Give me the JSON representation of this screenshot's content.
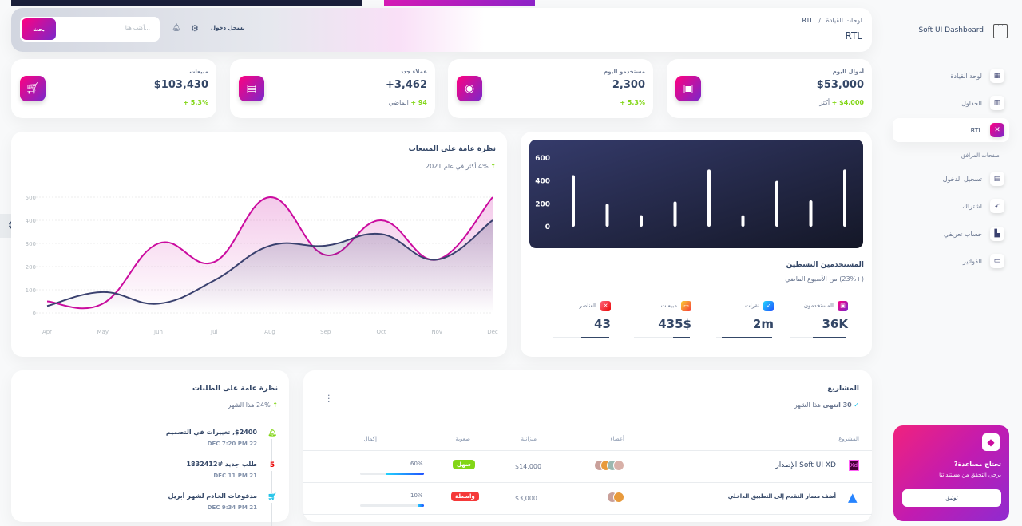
{
  "brand": {
    "name": "Soft UI Dashboard"
  },
  "navbar": {
    "breadcrumb_root": "لوحات القيادة",
    "breadcrumb_sep": "/",
    "breadcrumb_current": "RTL",
    "page_title": "RTL",
    "search_placeholder": "أكتب هنا...",
    "search_button": "بحث",
    "signin": "يسجل دخول"
  },
  "sidebar": {
    "items": [
      {
        "label": "لوحة القيادة",
        "icon": "shop-icon"
      },
      {
        "label": "الجداول",
        "icon": "office-icon"
      },
      {
        "label": "RTL",
        "icon": "tools-icon",
        "active": true
      }
    ],
    "section": "صفحات المرافق",
    "account_items": [
      {
        "label": "تسجيل الدخول",
        "icon": "document-icon"
      },
      {
        "label": "اشتراك",
        "icon": "rocket-icon"
      },
      {
        "label": "حساب تعريفي",
        "icon": "user-icon"
      },
      {
        "label": "الفواتير",
        "icon": "credit-card-icon"
      }
    ],
    "help": {
      "title": "تحتاج مساعدة?",
      "subtitle": "يرجى التحقق من مستنداتنا",
      "button": "توثيق"
    }
  },
  "stats": [
    {
      "title": "أموال اليوم",
      "value": "$53,000",
      "change": "+ $4,000",
      "suffix": "أكثر",
      "icon": "money-icon"
    },
    {
      "title": "مستخدمو اليوم",
      "value": "2,300",
      "change": "+ 5,3%",
      "suffix": "",
      "icon": "globe-icon"
    },
    {
      "title": "عملاء جدد",
      "value": "+3,462",
      "change": "+ 94",
      "suffix": "الماضي",
      "icon": "document-icon"
    },
    {
      "title": "مبيعات",
      "value": "$103,430",
      "change": "+ 5.3%",
      "suffix": "",
      "icon": "cart-icon"
    }
  ],
  "active_users": {
    "title": "المستخدمين النشطين",
    "subtitle": "(+23%) من الأسبوع الماضي",
    "metrics": [
      {
        "label": "المستخدمون",
        "value": "36K",
        "progress": 60,
        "color": "#cb0c9f"
      },
      {
        "label": "نقرات",
        "value": "2m",
        "progress": 90,
        "color": "#17c1e8"
      },
      {
        "label": "مبيعات",
        "value": "435$",
        "progress": 30,
        "color": "#f53939"
      },
      {
        "label": "العناصر",
        "value": "43",
        "progress": 50,
        "color": "#ea0606"
      }
    ]
  },
  "sales_overview": {
    "title": "نظرة عامة على المبيعات",
    "subtitle": "4% أكثر في عام 2021"
  },
  "chart_data": [
    {
      "type": "bar",
      "y_ticks": [
        "600",
        "400",
        "200",
        "0"
      ],
      "ylim": [
        0,
        600
      ],
      "values": [
        450,
        200,
        100,
        220,
        500,
        100,
        400,
        230,
        500
      ],
      "grid": false,
      "color": "#ffffff"
    },
    {
      "type": "area",
      "categories": [
        "Apr",
        "May",
        "Jun",
        "Jul",
        "Aug",
        "Sep",
        "Oct",
        "Nov",
        "Dec"
      ],
      "y_ticks": [
        "500",
        "400",
        "300",
        "200",
        "100",
        "0"
      ],
      "ylim": [
        0,
        500
      ],
      "grid": true,
      "series": [
        {
          "values": [
            50,
            40,
            300,
            220,
            500,
            250,
            400,
            230,
            500
          ],
          "color": "#cb0c9f"
        },
        {
          "values": [
            30,
            90,
            40,
            140,
            290,
            290,
            340,
            230,
            400
          ],
          "color": "#3a416f"
        }
      ]
    }
  ],
  "projects": {
    "title": "المشاريع",
    "done_count": "30 انتهى",
    "done_suffix": "هذا الشهر",
    "headers": [
      "المشروع",
      "أعضاء",
      "ميزانية",
      "صعوبة",
      "إكمال"
    ],
    "rows": [
      {
        "name": "Soft UI XD الإصدار",
        "logo": "XD",
        "budget": "$14,000",
        "difficulty": "سهل",
        "difficulty_color": "#82d616",
        "completion": "60%",
        "progress": 60
      },
      {
        "name": "أضف مسار التقدم إلى التطبيق الداخلي",
        "logo": "atlassian-icon",
        "budget": "$3,000",
        "difficulty": "واسطة",
        "difficulty_color": "#f53939",
        "completion": "10%",
        "progress": 10
      }
    ]
  },
  "orders": {
    "title": "نظرة عامة على الطلبات",
    "subtitle": "24% هذا الشهر",
    "items": [
      {
        "title": "$2400, تغييرات في التصميم",
        "time": "22 DEC 7:20 PM",
        "icon": "bell-icon",
        "color": "#82d616"
      },
      {
        "title": "طلب جديد #1832412",
        "time": "21 DEC 11 PM",
        "icon": "html5-icon",
        "color": "#ea0606"
      },
      {
        "title": "مدفوعات الخادم لشهر أبريل",
        "time": "21 DEC 9:34 PM",
        "icon": "cart-icon",
        "color": "#17c1e8"
      }
    ]
  }
}
